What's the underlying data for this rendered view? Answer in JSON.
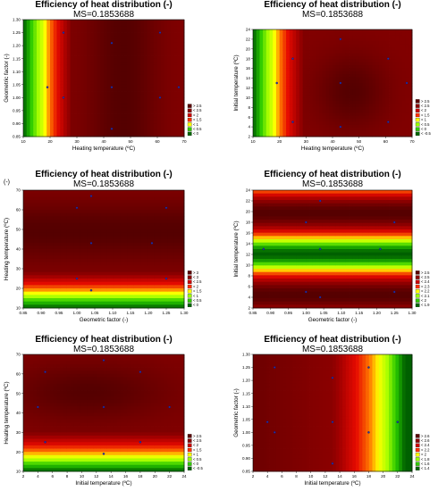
{
  "figure": {
    "stray_mark": "(-)"
  },
  "chart_data": [
    {
      "type": "heatmap",
      "title": "Efficiency of heat distribution (-)",
      "subtitle": "MS=0.1853688",
      "xlabel": "Heating temperature (ºC)",
      "ylabel": "Geometric factor (-)",
      "xlim": [
        10,
        70
      ],
      "ylim": [
        0.85,
        1.3
      ],
      "xticks": [
        10,
        20,
        30,
        40,
        50,
        60,
        70
      ],
      "yticks": [
        0.85,
        0.9,
        0.95,
        1.0,
        1.05,
        1.1,
        1.15,
        1.2,
        1.25,
        1.3
      ],
      "x_tick_labels": [
        "10",
        "20",
        "30",
        "40",
        "50",
        "60",
        "70"
      ],
      "y_tick_labels": [
        "0.85",
        "0.90",
        "0.95",
        "1.00",
        "1.05",
        "1.10",
        "1.15",
        "1.20",
        "1.25",
        "1.30"
      ],
      "legend": {
        "position": "bottom-right",
        "labels": [
          "> 2.5",
          "< 2.5",
          "< 2",
          "< 1.5",
          "< 1",
          "< 0.5",
          "< 0"
        ],
        "colors": [
          "#5c0000",
          "#8b0000",
          "#cc0000",
          "#ff3300",
          "#ffff00",
          "#33cc00",
          "#006600"
        ]
      },
      "points": [
        [
          25,
          1.25
        ],
        [
          43,
          1.21
        ],
        [
          61,
          1.25
        ],
        [
          19,
          1.04
        ],
        [
          43,
          1.04
        ],
        [
          68,
          1.04
        ],
        [
          25,
          1.0
        ],
        [
          61,
          1.0
        ],
        [
          43,
          0.88
        ]
      ]
    },
    {
      "type": "heatmap",
      "title": "Efficiency of heat distribution (-)",
      "subtitle": "MS=0.1853688",
      "xlabel": "Heating temperature (ºC)",
      "ylabel": "Initial temperature (ºC)",
      "xlim": [
        10,
        70
      ],
      "ylim": [
        2,
        24
      ],
      "xticks": [
        10,
        20,
        30,
        40,
        50,
        60,
        70
      ],
      "yticks": [
        2,
        4,
        6,
        8,
        10,
        12,
        14,
        16,
        18,
        20,
        22,
        24
      ],
      "x_tick_labels": [
        "10",
        "20",
        "30",
        "40",
        "50",
        "60",
        "70"
      ],
      "y_tick_labels": [
        "2",
        "4",
        "6",
        "8",
        "10",
        "12",
        "14",
        "16",
        "18",
        "20",
        "22",
        "24"
      ],
      "legend": {
        "position": "bottom-right",
        "labels": [
          "> 2.5",
          "< 2.5",
          "< 2",
          "< 1.5",
          "< 1",
          "< 0.5",
          "< 0",
          "< -0.5"
        ],
        "colors": [
          "#5c0000",
          "#8b0000",
          "#cc0000",
          "#ff3300",
          "#ffff00",
          "#99ff00",
          "#33cc00",
          "#006600"
        ]
      },
      "points": [
        [
          43,
          22
        ],
        [
          25,
          18
        ],
        [
          61,
          18
        ],
        [
          19,
          13
        ],
        [
          43,
          13
        ],
        [
          68,
          13
        ],
        [
          25,
          5
        ],
        [
          61,
          5
        ],
        [
          43,
          4
        ]
      ]
    },
    {
      "type": "heatmap",
      "title": "Efficiency of heat distribution (-)",
      "subtitle": "MS=0.1853688",
      "xlabel": "Geometric factor (-)",
      "ylabel": "Heating temperature (ºC)",
      "xlim": [
        0.85,
        1.3
      ],
      "ylim": [
        10,
        70
      ],
      "xticks": [
        0.85,
        0.9,
        0.95,
        1.0,
        1.05,
        1.1,
        1.15,
        1.2,
        1.25,
        1.3
      ],
      "yticks": [
        10,
        20,
        30,
        40,
        50,
        60,
        70
      ],
      "x_tick_labels": [
        "0.85",
        "0.90",
        "0.95",
        "1.00",
        "1.05",
        "1.10",
        "1.15",
        "1.20",
        "1.25",
        "1.30"
      ],
      "y_tick_labels": [
        "10",
        "20",
        "30",
        "40",
        "50",
        "60",
        "70"
      ],
      "legend": {
        "position": "bottom-right",
        "labels": [
          "> 3",
          "< 3",
          "< 2.5",
          "< 2",
          "< 1.5",
          "< 1",
          "< 0.5",
          "< 0"
        ],
        "colors": [
          "#5c0000",
          "#8b0000",
          "#cc0000",
          "#ff3300",
          "#ffff00",
          "#99ff00",
          "#33cc00",
          "#006600"
        ]
      },
      "points": [
        [
          1.04,
          67
        ],
        [
          1.0,
          61
        ],
        [
          1.25,
          61
        ],
        [
          1.04,
          43
        ],
        [
          1.21,
          43
        ],
        [
          1.0,
          25
        ],
        [
          1.25,
          25
        ],
        [
          1.04,
          19
        ]
      ]
    },
    {
      "type": "heatmap",
      "title": "Efficiency of heat distribution (-)",
      "subtitle": "MS=0.1853688",
      "xlabel": "Geometric factor (-)",
      "ylabel": "Initial temperature (ºC)",
      "xlim": [
        0.85,
        1.3
      ],
      "ylim": [
        2,
        24
      ],
      "xticks": [
        0.85,
        0.9,
        0.95,
        1.0,
        1.05,
        1.1,
        1.15,
        1.2,
        1.25,
        1.3
      ],
      "yticks": [
        2,
        4,
        6,
        8,
        10,
        12,
        14,
        16,
        18,
        20,
        22,
        24
      ],
      "x_tick_labels": [
        "0.85",
        "0.90",
        "0.95",
        "1.00",
        "1.05",
        "1.10",
        "1.15",
        "1.20",
        "1.25",
        "1.30"
      ],
      "y_tick_labels": [
        "2",
        "4",
        "6",
        "8",
        "10",
        "12",
        "14",
        "16",
        "18",
        "20",
        "22",
        "24"
      ],
      "legend": {
        "position": "bottom-right",
        "labels": [
          "> 2.5",
          "< 2.5",
          "< 2.4",
          "< 2.3",
          "< 2.2",
          "< 2.1",
          "< 2",
          "< 1.9"
        ],
        "colors": [
          "#5c0000",
          "#8b0000",
          "#cc0000",
          "#ff3300",
          "#ffff00",
          "#99ff00",
          "#33cc00",
          "#006600"
        ]
      },
      "points": [
        [
          1.04,
          22
        ],
        [
          1.0,
          18
        ],
        [
          1.25,
          18
        ],
        [
          0.88,
          13
        ],
        [
          1.04,
          13
        ],
        [
          1.21,
          13
        ],
        [
          1.0,
          5
        ],
        [
          1.25,
          5
        ],
        [
          1.04,
          4
        ]
      ]
    },
    {
      "type": "heatmap",
      "title": "Efficiency of heat distribution (-)",
      "subtitle": "MS=0.1853688",
      "xlabel": "Initial temperature (ºC)",
      "ylabel": "Heating temperature (ºC)",
      "xlim": [
        2,
        24
      ],
      "ylim": [
        10,
        70
      ],
      "xticks": [
        2,
        4,
        6,
        8,
        10,
        12,
        14,
        16,
        18,
        20,
        22,
        24
      ],
      "yticks": [
        10,
        20,
        30,
        40,
        50,
        60,
        70
      ],
      "x_tick_labels": [
        "2",
        "4",
        "6",
        "8",
        "10",
        "12",
        "14",
        "16",
        "18",
        "20",
        "22",
        "24"
      ],
      "y_tick_labels": [
        "10",
        "20",
        "30",
        "40",
        "50",
        "60",
        "70"
      ],
      "legend": {
        "position": "bottom-right",
        "labels": [
          "> 2.5",
          "< 2.5",
          "< 2",
          "< 1.5",
          "< 1",
          "< 0.5",
          "< 0",
          "< -0.5"
        ],
        "colors": [
          "#5c0000",
          "#8b0000",
          "#cc0000",
          "#ff3300",
          "#ffff00",
          "#99ff00",
          "#33cc00",
          "#006600"
        ]
      },
      "points": [
        [
          13,
          67
        ],
        [
          5,
          61
        ],
        [
          18,
          61
        ],
        [
          4,
          43
        ],
        [
          13,
          43
        ],
        [
          22,
          43
        ],
        [
          5,
          25
        ],
        [
          18,
          25
        ],
        [
          13,
          19
        ]
      ]
    },
    {
      "type": "heatmap",
      "title": "Efficiency of heat distribution (-)",
      "subtitle": "MS=0.1853688",
      "xlabel": "Initial temperature (ºC)",
      "ylabel": "Geometric factor (-)",
      "xlim": [
        2,
        24
      ],
      "ylim": [
        0.85,
        1.3
      ],
      "xticks": [
        2,
        4,
        6,
        8,
        10,
        12,
        14,
        16,
        18,
        20,
        22,
        24
      ],
      "yticks": [
        0.85,
        0.9,
        0.95,
        1.0,
        1.05,
        1.1,
        1.15,
        1.2,
        1.25,
        1.3
      ],
      "x_tick_labels": [
        "2",
        "4",
        "6",
        "8",
        "10",
        "12",
        "14",
        "16",
        "18",
        "20",
        "22",
        "24"
      ],
      "y_tick_labels": [
        "0.85",
        "0.90",
        "0.95",
        "1.00",
        "1.05",
        "1.10",
        "1.15",
        "1.20",
        "1.25",
        "1.30"
      ],
      "legend": {
        "position": "bottom-right",
        "labels": [
          "> 2.6",
          "< 2.6",
          "< 2.4",
          "< 2.2",
          "< 2",
          "< 1.8",
          "< 1.6",
          "< 1.4"
        ],
        "colors": [
          "#5c0000",
          "#8b0000",
          "#cc0000",
          "#ff3300",
          "#ffff00",
          "#99ff00",
          "#33cc00",
          "#006600"
        ]
      },
      "points": [
        [
          5,
          1.25
        ],
        [
          13,
          1.21
        ],
        [
          18,
          1.25
        ],
        [
          4,
          1.04
        ],
        [
          13,
          1.04
        ],
        [
          22,
          1.04
        ],
        [
          5,
          1.0
        ],
        [
          18,
          1.0
        ],
        [
          13,
          0.88
        ]
      ]
    }
  ]
}
